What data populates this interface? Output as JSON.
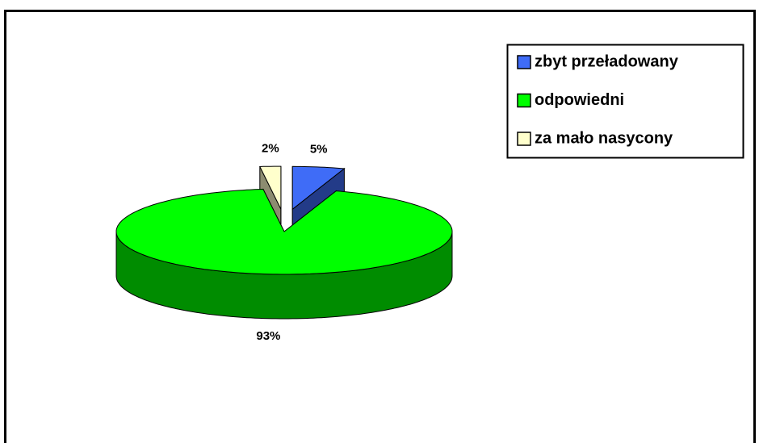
{
  "chart_data": {
    "type": "pie",
    "categories": [
      "zbyt przeładowany",
      "odpowiedni",
      "za mało nasycony"
    ],
    "values": [
      5,
      93,
      2
    ],
    "value_labels": [
      "5%",
      "93%",
      "2%"
    ],
    "colors": [
      "#3f6cf7",
      "#00ff00",
      "#ffffcc"
    ],
    "legend": "top-right"
  }
}
